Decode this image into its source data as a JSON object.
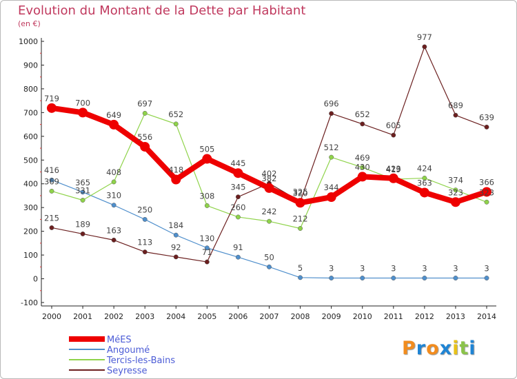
{
  "chart_data": {
    "type": "line",
    "title": "Evolution du Montant de la Dette par Habitant",
    "subtitle": "(en €)",
    "x": [
      "2000",
      "2001",
      "2002",
      "2003",
      "2004",
      "2005",
      "2006",
      "2007",
      "2008",
      "2009",
      "2010",
      "2011",
      "2012",
      "2013",
      "2014"
    ],
    "y_ticks": [
      -100,
      0,
      100,
      200,
      300,
      400,
      500,
      600,
      700,
      800,
      900,
      1000
    ],
    "ylim": [
      -100,
      1000
    ],
    "grid": false,
    "legend_position": "bottom-left",
    "series": [
      {
        "name": "MéES",
        "color": "#ee0000",
        "values": [
          719,
          700,
          649,
          556,
          418,
          505,
          445,
          382,
          320,
          344,
          430,
          423,
          363,
          323,
          366
        ]
      },
      {
        "name": "Angoumé",
        "color": "#4f8fcc",
        "values": [
          416,
          365,
          310,
          250,
          184,
          130,
          91,
          50,
          5,
          3,
          3,
          3,
          3,
          3,
          3
        ]
      },
      {
        "name": "Tercis-les-Bains",
        "color": "#8fd34a",
        "values": [
          369,
          331,
          408,
          697,
          652,
          308,
          260,
          242,
          212,
          512,
          469,
          419,
          424,
          374,
          323
        ]
      },
      {
        "name": "Seyresse",
        "color": "#6b1f1f",
        "values": [
          215,
          189,
          163,
          113,
          92,
          71,
          345,
          402,
          325,
          696,
          652,
          605,
          977,
          689,
          639
        ]
      }
    ]
  },
  "logo": {
    "text": [
      "P",
      "r",
      "o",
      "x",
      "i",
      "t",
      "i"
    ],
    "colors": [
      "#f28c1e",
      "#1f84d4",
      "#f28c1e",
      "#1f84d4",
      "#e8c21a",
      "#8bc34a",
      "#1f84d4"
    ]
  }
}
